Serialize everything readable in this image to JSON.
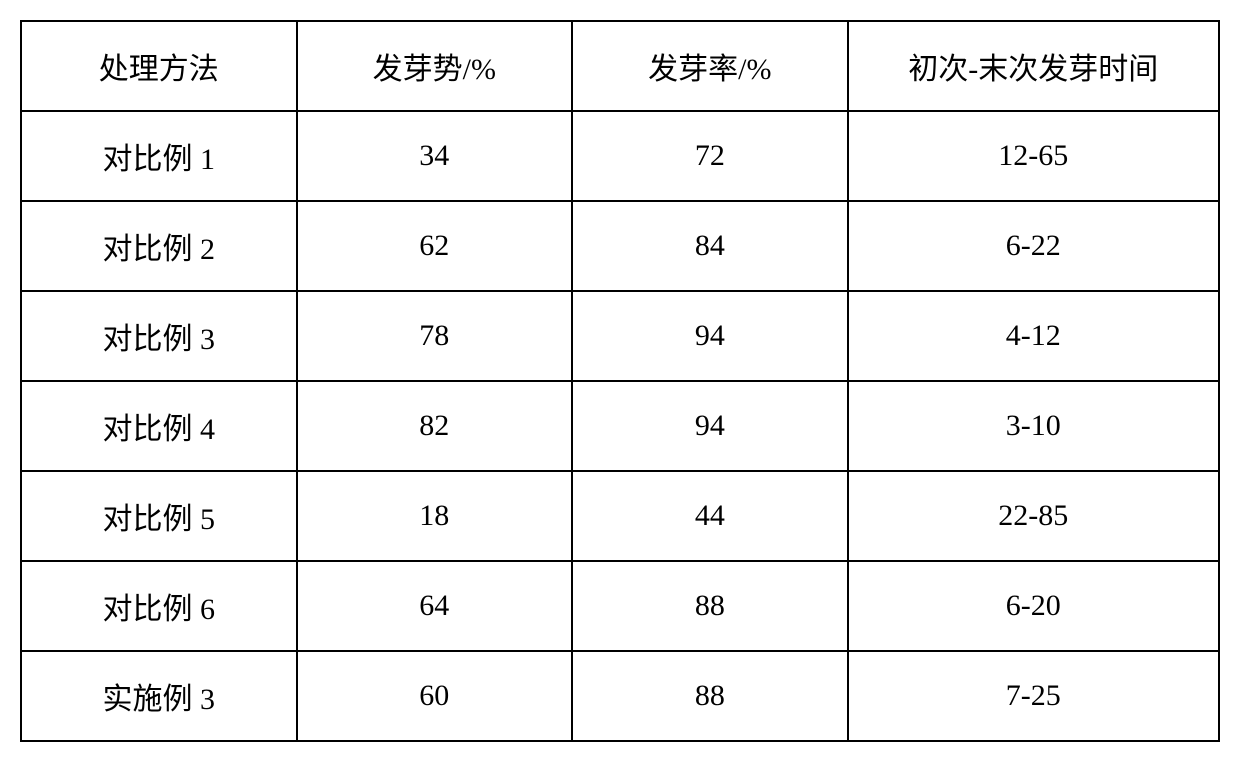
{
  "table": {
    "type": "table",
    "background_color": "#ffffff",
    "border_color": "#000000",
    "border_width": 2,
    "text_color": "#000000",
    "font_size": 30,
    "font_family": "SimSun",
    "cell_padding_vertical": 22,
    "cell_padding_horizontal": 10,
    "text_align": "center",
    "column_widths_pct": [
      23,
      23,
      23,
      31
    ],
    "columns": [
      "处理方法",
      "发芽势/%",
      "发芽率/%",
      "初次-末次发芽时间"
    ],
    "rows": [
      [
        "对比例 1",
        "34",
        "72",
        "12-65"
      ],
      [
        "对比例 2",
        "62",
        "84",
        "6-22"
      ],
      [
        "对比例 3",
        "78",
        "94",
        "4-12"
      ],
      [
        "对比例 4",
        "82",
        "94",
        "3-10"
      ],
      [
        "对比例 5",
        "18",
        "44",
        "22-85"
      ],
      [
        "对比例 6",
        "64",
        "88",
        "6-20"
      ],
      [
        "实施例 3",
        "60",
        "88",
        "7-25"
      ]
    ]
  }
}
